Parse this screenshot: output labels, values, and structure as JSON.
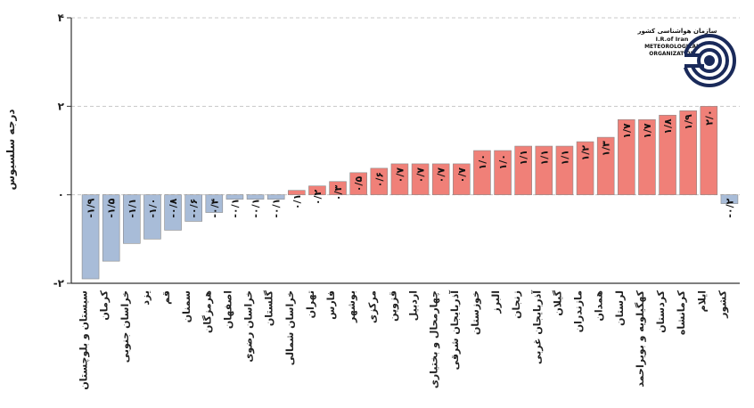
{
  "chart_data": {
    "type": "bar",
    "ylabel": "درجه سلسیوس",
    "ylim": [
      -2,
      4
    ],
    "yticks": [
      -2,
      0,
      2,
      4
    ],
    "ytick_labels": [
      "-۲",
      "۰",
      "۲",
      "۴"
    ],
    "grid": true,
    "colors": {
      "positive": "#f08078",
      "negative": "#a8bcd8",
      "bar_edge": "#8a8a8a",
      "axis": "#333333",
      "grid": "#c8c8c8"
    },
    "categories": [
      "سیستان و بلوچستان",
      "کرمان",
      "خراسان جنوبی",
      "یزد",
      "قم",
      "سمنان",
      "هرمزگان",
      "اصفهان",
      "خراسان رضوی",
      "گلستان",
      "خراسان شمالی",
      "تهران",
      "فارس",
      "بوشهر",
      "مرکزی",
      "قزوین",
      "اردبیل",
      "چهارمحال و بختیاری",
      "آذربایجان شرقی",
      "خوزستان",
      "البرز",
      "زنجان",
      "آذربایجان غربی",
      "گیلان",
      "مازندران",
      "همدان",
      "لرستان",
      "کهگیلویه و بویراحمد",
      "کردستان",
      "کرمانشاه",
      "ایلام",
      "کشور"
    ],
    "values": [
      -1.9,
      -1.5,
      -1.1,
      -1.0,
      -0.8,
      -0.6,
      -0.4,
      -0.1,
      -0.1,
      -0.1,
      0.1,
      0.2,
      0.3,
      0.5,
      0.6,
      0.7,
      0.7,
      0.7,
      0.7,
      1.0,
      1.0,
      1.1,
      1.1,
      1.1,
      1.2,
      1.3,
      1.7,
      1.7,
      1.8,
      1.9,
      2.0,
      -0.2
    ],
    "value_labels": [
      "-۱/۹",
      "-۱/۵",
      "-۱/۱",
      "-۱/۰",
      "-۰/۸",
      "-۰/۶",
      "-۰/۴",
      "-۰/۱",
      "-۰/۱",
      "-۰/۱",
      "۰/۱",
      "۰/۲",
      "۰/۳",
      "۰/۵",
      "۰/۶",
      "۰/۷",
      "۰/۷",
      "۰/۷",
      "۰/۷",
      "۱/۰",
      "۱/۰",
      "۱/۱",
      "۱/۱",
      "۱/۱",
      "۱/۲",
      "۱/۳",
      "۱/۷",
      "۱/۷",
      "۱/۸",
      "۱/۹",
      "۲/۰",
      "-۰/۲"
    ]
  },
  "logo": {
    "title_fa": "سازمان هواشناسی کشور",
    "line1": "I.R.of Iran",
    "line2": "METEOROLOGICAL",
    "line3": "ORGANIZATION",
    "color": "#1a2a5a"
  }
}
